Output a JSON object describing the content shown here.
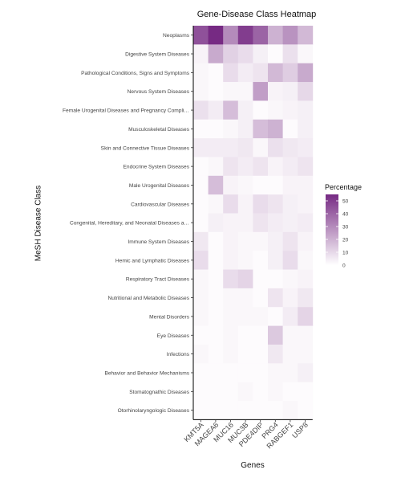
{
  "chart_data": {
    "type": "heatmap",
    "title": "Gene-Disease Class Heatmap",
    "xlabel": "Genes",
    "ylabel": "MeSH Disease Class",
    "x": [
      "KMT5A",
      "MAGEA6",
      "MUC16",
      "MUC3B",
      "PDE4DIP",
      "PRG4",
      "RABGEF1",
      "USP8"
    ],
    "y": [
      "Neoplasms",
      "Digestive System Diseases",
      "Pathological Conditions, Signs and Symptoms",
      "Nervous System Diseases",
      "Female Urogenital Diseases and Pregnancy Compli…",
      "Musculoskeletal Diseases",
      "Skin and Connective Tissue Diseases",
      "Endocrine System Diseases",
      "Male Urogenital Diseases",
      "Cardiovascular Diseases",
      "Congenital, Hereditary, and Neonatal Diseases a…",
      "Immune System Diseases",
      "Hemic and Lymphatic Diseases",
      "Respiratory Tract Diseases",
      "Nutritional and Metabolic Diseases",
      "Mental Disorders",
      "Eye Diseases",
      "Infections",
      "Behavior and Behavior Mechanisms",
      "Stomatognathic Diseases",
      "Otorhinolaryngologic Diseases"
    ],
    "values": [
      [
        45,
        55,
        30,
        50,
        40,
        20,
        28,
        18
      ],
      [
        3,
        22,
        12,
        9,
        4,
        1,
        8,
        2
      ],
      [
        2,
        1,
        9,
        5,
        7,
        18,
        13,
        22
      ],
      [
        2,
        1,
        2,
        2,
        25,
        3,
        4,
        10
      ],
      [
        8,
        5,
        17,
        4,
        1,
        2,
        3,
        4
      ],
      [
        1,
        1,
        2,
        4,
        17,
        20,
        1,
        4
      ],
      [
        5,
        5,
        5,
        6,
        2,
        8,
        6,
        5
      ],
      [
        1,
        2,
        7,
        5,
        7,
        3,
        5,
        7
      ],
      [
        1,
        17,
        3,
        2,
        1,
        1,
        3,
        3
      ],
      [
        1,
        2,
        9,
        3,
        9,
        7,
        4,
        3
      ],
      [
        1,
        4,
        3,
        3,
        7,
        5,
        4,
        5
      ],
      [
        6,
        1,
        3,
        2,
        2,
        4,
        7,
        3
      ],
      [
        9,
        1,
        3,
        2,
        1,
        4,
        9,
        2
      ],
      [
        2,
        1,
        9,
        11,
        1,
        1,
        2,
        3
      ],
      [
        2,
        1,
        2,
        2,
        1,
        7,
        3,
        6
      ],
      [
        2,
        1,
        2,
        2,
        2,
        1,
        5,
        11
      ],
      [
        1,
        1,
        2,
        1,
        1,
        14,
        2,
        2
      ],
      [
        2,
        1,
        2,
        1,
        1,
        6,
        2,
        2
      ],
      [
        1,
        1,
        1,
        1,
        1,
        2,
        2,
        4
      ],
      [
        1,
        1,
        1,
        2,
        1,
        2,
        1,
        1
      ],
      [
        1,
        1,
        1,
        1,
        1,
        1,
        2,
        1
      ]
    ],
    "colorbar": {
      "title": "Percentage",
      "min": 0,
      "max": 55,
      "low_color": "#ffffff",
      "high_color": "#762a83",
      "ticks": [
        "50",
        "40",
        "30",
        "20",
        "10",
        "0"
      ],
      "tick_values": [
        50,
        40,
        30,
        20,
        10,
        0
      ]
    },
    "legend_placement": "right",
    "grid": false
  }
}
